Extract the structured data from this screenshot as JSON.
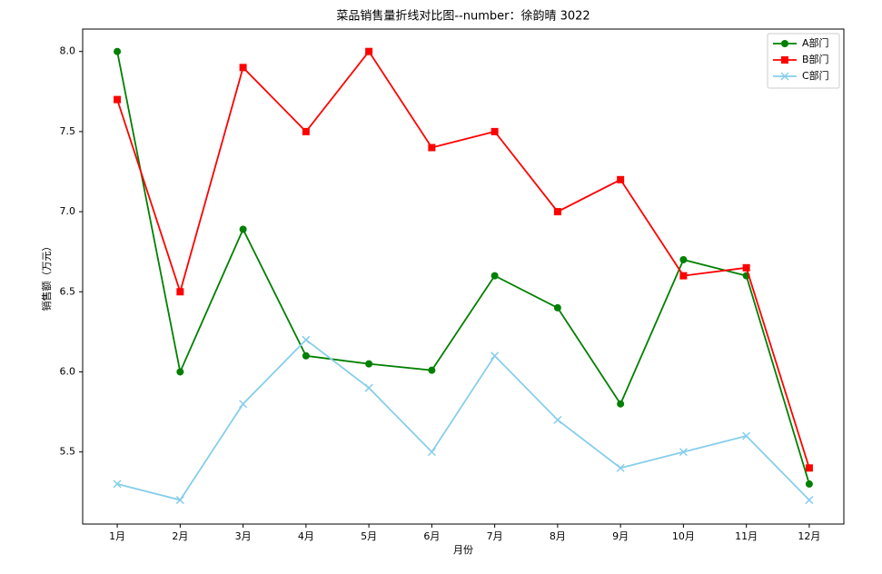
{
  "chart_data": {
    "type": "line",
    "title": "菜品销售量折线对比图--number：徐韵晴 3022",
    "x_label": "月份",
    "y_label": "销售额（万元）",
    "categories": [
      "1月",
      "2月",
      "3月",
      "4月",
      "5月",
      "6月",
      "7月",
      "8月",
      "9月",
      "10月",
      "11月",
      "12月"
    ],
    "series": [
      {
        "name": "A部门",
        "color": "#008000",
        "marker": "circle",
        "values": [
          8.0,
          6.0,
          6.89,
          6.1,
          6.05,
          6.01,
          6.6,
          6.4,
          5.8,
          6.7,
          6.6,
          5.3
        ]
      },
      {
        "name": "B部门",
        "color": "#ff0000",
        "marker": "square",
        "values": [
          7.7,
          6.5,
          7.9,
          7.5,
          8.0,
          7.4,
          7.5,
          7.0,
          7.2,
          6.6,
          6.65,
          5.4
        ]
      },
      {
        "name": "C部门",
        "color": "#87ceeb",
        "marker": "x",
        "values": [
          5.3,
          5.2,
          5.8,
          6.2,
          5.9,
          5.5,
          6.1,
          5.7,
          5.4,
          5.5,
          5.6,
          5.2
        ]
      }
    ],
    "ylim": [
      5.05,
      8.14
    ],
    "yticks": [
      5.5,
      {
        "value": 6,
        "label": "6.0"
      },
      6.5,
      {
        "value": 7,
        "label": "7.0"
      },
      7.5,
      {
        "value": 8,
        "label": "8.0"
      }
    ],
    "legend": "upper right",
    "grid": false
  }
}
